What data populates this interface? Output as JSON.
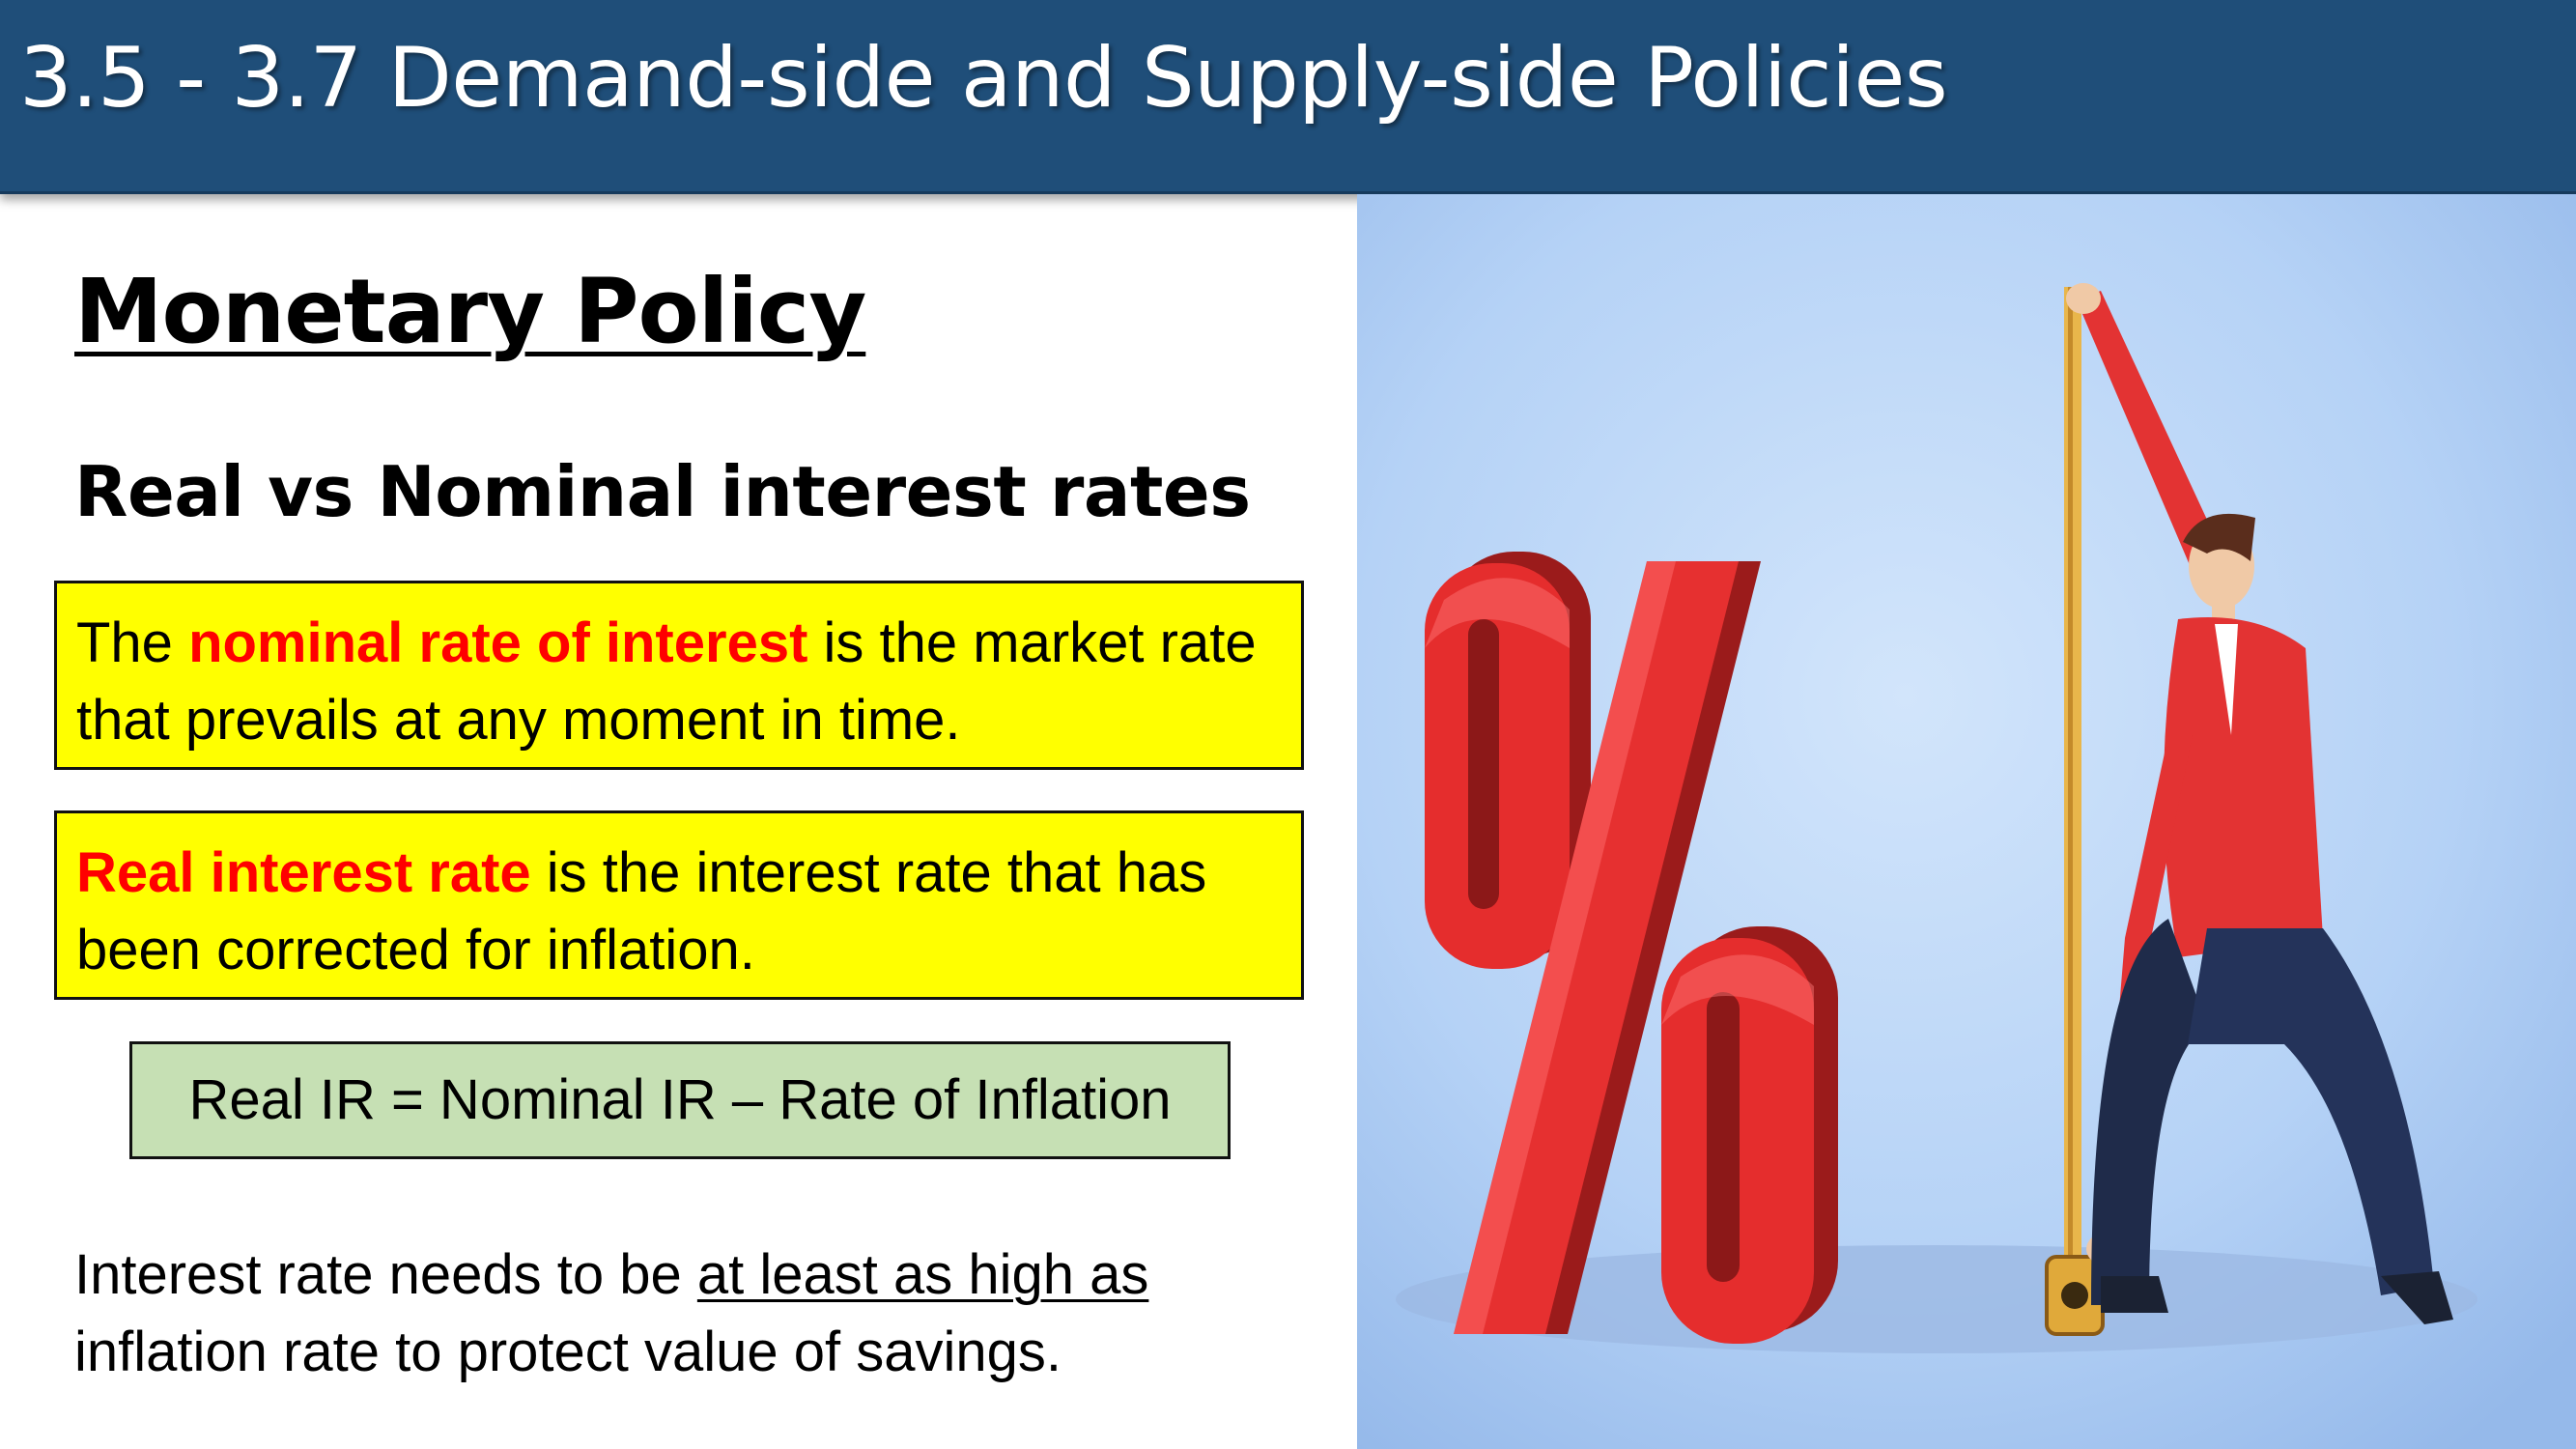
{
  "header": {
    "title": "3.5 - 3.7 Demand-side and Supply-side Policies"
  },
  "section": {
    "title": "Monetary Policy",
    "subtitle": "Real vs Nominal interest rates"
  },
  "definitions": [
    {
      "pre": "The ",
      "highlight": "nominal rate of interest",
      "post": " is the market rate that prevails at any moment in time."
    },
    {
      "pre": "",
      "highlight": "Real interest rate",
      "post": " is the interest rate that has been corrected for inflation."
    }
  ],
  "formula": "Real IR = Nominal IR – Rate of Inflation",
  "note": {
    "pre": "Interest rate needs to be ",
    "underlined": "at least as high as",
    "post": " inflation rate to protect value of savings."
  },
  "illustration": {
    "symbol": "%",
    "icon": "man-measuring-percent-sign-illustration"
  },
  "colors": {
    "header_bg": "#1f4e79",
    "definition_bg": "#ffff00",
    "highlight": "#ff0000",
    "formula_bg": "#c6e0b4",
    "illustration_bg": "#b3d0f5"
  }
}
